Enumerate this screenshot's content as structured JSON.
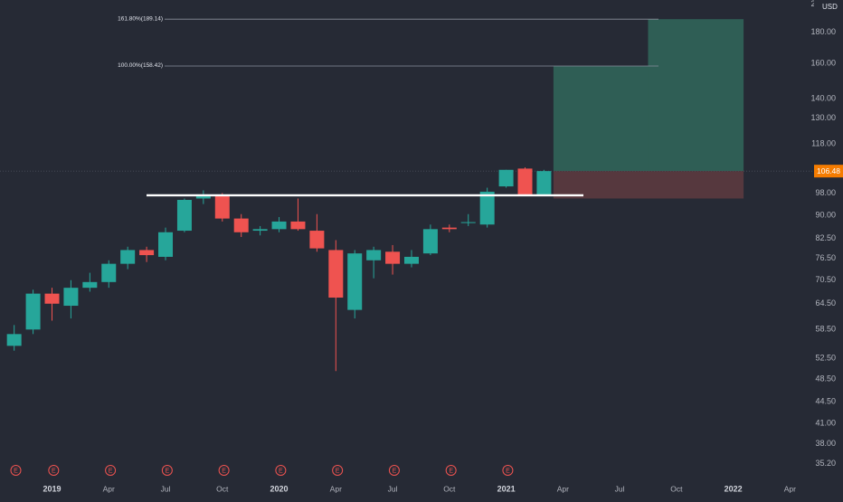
{
  "chart_data": {
    "type": "candlestick",
    "timeframe": "monthly",
    "price_scale": "log",
    "currency": "USD",
    "y_tick_labels": [
      "200.00",
      "180.00",
      "160.00",
      "140.00",
      "130.00",
      "118.00",
      "98.00",
      "90.00",
      "82.50",
      "76.50",
      "70.50",
      "64.50",
      "58.50",
      "52.50",
      "48.50",
      "44.50",
      "41.00",
      "38.00",
      "35.20"
    ],
    "x_tick_labels": [
      {
        "label": "2019",
        "month": "2019-01",
        "major": true
      },
      {
        "label": "Apr",
        "month": "2019-04",
        "major": false
      },
      {
        "label": "Jul",
        "month": "2019-07",
        "major": false
      },
      {
        "label": "Oct",
        "month": "2019-10",
        "major": false
      },
      {
        "label": "2020",
        "month": "2020-01",
        "major": true
      },
      {
        "label": "Apr",
        "month": "2020-04",
        "major": false
      },
      {
        "label": "Jul",
        "month": "2020-07",
        "major": false
      },
      {
        "label": "Oct",
        "month": "2020-10",
        "major": false
      },
      {
        "label": "2021",
        "month": "2021-01",
        "major": true
      },
      {
        "label": "Apr",
        "month": "2021-04",
        "major": false
      },
      {
        "label": "Jul",
        "month": "2021-07",
        "major": false
      },
      {
        "label": "Oct",
        "month": "2021-10",
        "major": false
      },
      {
        "label": "2022",
        "month": "2022-01",
        "major": true
      },
      {
        "label": "Apr",
        "month": "2022-04",
        "major": false
      }
    ],
    "earnings_markers": [
      "2019-01",
      "2019-03",
      "2019-06",
      "2019-09",
      "2019-12",
      "2020-03",
      "2020-06",
      "2020-09",
      "2020-12",
      "2021-03"
    ],
    "earnings_label": "E",
    "last_price": "106.48",
    "candles": [
      {
        "t": "2018-11",
        "o": 55.0,
        "h": 59.5,
        "l": 54.0,
        "c": 57.5
      },
      {
        "t": "2018-12",
        "o": 58.5,
        "h": 68.0,
        "l": 57.5,
        "c": 67.0
      },
      {
        "t": "2019-01",
        "o": 67.0,
        "h": 68.5,
        "l": 60.5,
        "c": 64.5
      },
      {
        "t": "2019-02",
        "o": 64.0,
        "h": 70.5,
        "l": 61.0,
        "c": 68.5
      },
      {
        "t": "2019-03",
        "o": 68.5,
        "h": 72.5,
        "l": 67.5,
        "c": 70.0
      },
      {
        "t": "2019-04",
        "o": 70.0,
        "h": 76.0,
        "l": 68.5,
        "c": 75.0
      },
      {
        "t": "2019-05",
        "o": 75.0,
        "h": 80.0,
        "l": 73.5,
        "c": 79.0
      },
      {
        "t": "2019-06",
        "o": 79.0,
        "h": 80.0,
        "l": 75.5,
        "c": 77.5
      },
      {
        "t": "2019-07",
        "o": 77.0,
        "h": 86.0,
        "l": 76.0,
        "c": 84.5
      },
      {
        "t": "2019-08",
        "o": 85.0,
        "h": 96.0,
        "l": 84.5,
        "c": 95.5
      },
      {
        "t": "2019-09",
        "o": 96.0,
        "h": 99.0,
        "l": 94.0,
        "c": 97.5
      },
      {
        "t": "2019-10",
        "o": 97.0,
        "h": 98.0,
        "l": 88.0,
        "c": 89.0
      },
      {
        "t": "2019-11",
        "o": 89.0,
        "h": 90.5,
        "l": 83.0,
        "c": 84.5
      },
      {
        "t": "2019-12",
        "o": 85.0,
        "h": 86.5,
        "l": 83.5,
        "c": 85.5
      },
      {
        "t": "2020-01",
        "o": 85.5,
        "h": 89.5,
        "l": 84.5,
        "c": 88.0
      },
      {
        "t": "2020-02",
        "o": 88.0,
        "h": 96.0,
        "l": 85.0,
        "c": 85.5
      },
      {
        "t": "2020-03",
        "o": 85.0,
        "h": 90.5,
        "l": 78.5,
        "c": 79.5
      },
      {
        "t": "2020-04",
        "o": 79.0,
        "h": 82.0,
        "l": 50.0,
        "c": 66.0
      },
      {
        "t": "2020-05",
        "o": 63.0,
        "h": 79.0,
        "l": 61.0,
        "c": 78.0
      },
      {
        "t": "2020-06",
        "o": 76.0,
        "h": 80.0,
        "l": 71.0,
        "c": 79.0
      },
      {
        "t": "2020-07",
        "o": 78.5,
        "h": 80.5,
        "l": 72.0,
        "c": 75.0
      },
      {
        "t": "2020-08",
        "o": 75.0,
        "h": 79.0,
        "l": 74.0,
        "c": 77.0
      },
      {
        "t": "2020-09",
        "o": 78.0,
        "h": 87.0,
        "l": 77.5,
        "c": 85.5
      },
      {
        "t": "2020-10",
        "o": 86.0,
        "h": 87.0,
        "l": 84.5,
        "c": 85.5
      },
      {
        "t": "2020-11",
        "o": 87.5,
        "h": 90.5,
        "l": 86.5,
        "c": 87.8
      },
      {
        "t": "2020-12",
        "o": 87.0,
        "h": 100.0,
        "l": 86.0,
        "c": 98.5
      },
      {
        "t": "2021-01",
        "o": 100.5,
        "h": 107.0,
        "l": 100.0,
        "c": 107.0
      },
      {
        "t": "2021-02",
        "o": 107.5,
        "h": 108.0,
        "l": 97.0,
        "c": 97.5
      },
      {
        "t": "2021-03",
        "o": 97.5,
        "h": 107.0,
        "l": 97.0,
        "c": 106.48
      }
    ],
    "support_line": {
      "price": 97.0,
      "from": "2019-08",
      "to": "2021-07"
    },
    "fib_levels": [
      {
        "label": "161.80%(189.14)",
        "price": 189.14
      },
      {
        "label": "100.00%(158.42)",
        "price": 158.42
      }
    ],
    "positions": [
      {
        "from": "2021-04",
        "to": "2021-08",
        "entry": 106.48,
        "target": 158.42,
        "stop": 96.0
      },
      {
        "from": "2021-09",
        "to": "2022-01",
        "entry": 106.48,
        "target": 189.14,
        "stop": 96.0
      }
    ],
    "colors": {
      "background": "#262a35",
      "up": "#26a69a",
      "down": "#ef5350",
      "support": "#ffffff",
      "profit_zone": "#2f5e55",
      "loss_zone": "#56383e",
      "last_price": "#f57c00",
      "text": "#b2b5be"
    }
  }
}
